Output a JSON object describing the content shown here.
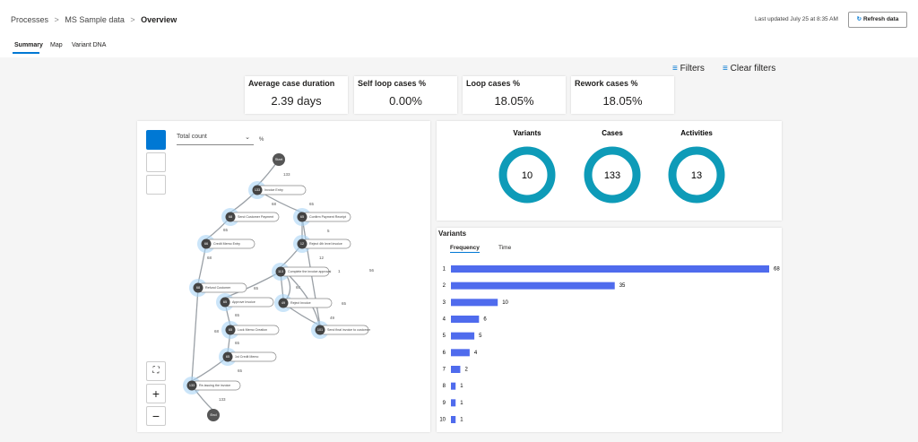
{
  "breadcrumb": [
    "Processes",
    "MS Sample data",
    "Overview"
  ],
  "last_updated": "Last updated July 25 at 8:35 AM",
  "refresh_button": "Refresh data",
  "tabs": [
    "Summary",
    "Map",
    "Variant DNA"
  ],
  "filters": "Filters",
  "clear_filters": "Clear filters",
  "kpis": [
    {
      "label": "Average case duration",
      "value": "2.39 days"
    },
    {
      "label": "Self loop cases %",
      "value": "0.00%"
    },
    {
      "label": "Loop cases %",
      "value": "18.05%"
    },
    {
      "label": "Rework cases %",
      "value": "18.05%"
    }
  ],
  "map": {
    "dropdown": "Total count",
    "percent": "%",
    "nodes": [
      {
        "label": "Start"
      },
      {
        "count": "133",
        "label": "Invoice Entry"
      },
      {
        "count": "68",
        "label": "Send Customer Payment"
      },
      {
        "count": "65",
        "label": "Confirm Payment Receipt"
      },
      {
        "count": "66",
        "label": "Credit Memo Entry"
      },
      {
        "count": "12",
        "label": "Reject 4th level invoice"
      },
      {
        "count": "113",
        "label": "Complete the invoice approval"
      },
      {
        "count": "68",
        "label": "Refund Customer"
      },
      {
        "count": "65",
        "label": "Approve Invoice"
      },
      {
        "count": "49",
        "label": "Reject Invoice"
      },
      {
        "count": "101",
        "label": "Send final invoice to customer"
      },
      {
        "count": "65",
        "label": "Lock Memo Creation"
      },
      {
        "count": "65",
        "label": "1st Credit Memo"
      },
      {
        "count": "133",
        "label": "Re-issuing the invoice"
      },
      {
        "label": "End"
      }
    ],
    "edges": [
      "133",
      "68",
      "65",
      "65",
      "5",
      "12",
      "56",
      "68",
      "65",
      "68",
      "68",
      "65",
      "65",
      "65",
      "49",
      "133",
      "1",
      "65"
    ]
  },
  "summary": [
    {
      "label": "Variants",
      "value": "10"
    },
    {
      "label": "Cases",
      "value": "133"
    },
    {
      "label": "Activities",
      "value": "13"
    }
  ],
  "chart_data": {
    "type": "bar",
    "title": "Variants",
    "tabs": [
      "Frequency",
      "Time"
    ],
    "categories": [
      "1",
      "2",
      "3",
      "4",
      "5",
      "6",
      "7",
      "8",
      "9",
      "10"
    ],
    "values": [
      68,
      35,
      10,
      6,
      5,
      4,
      2,
      1,
      1,
      1
    ],
    "color": "#4f6bed",
    "orientation": "horizontal"
  }
}
